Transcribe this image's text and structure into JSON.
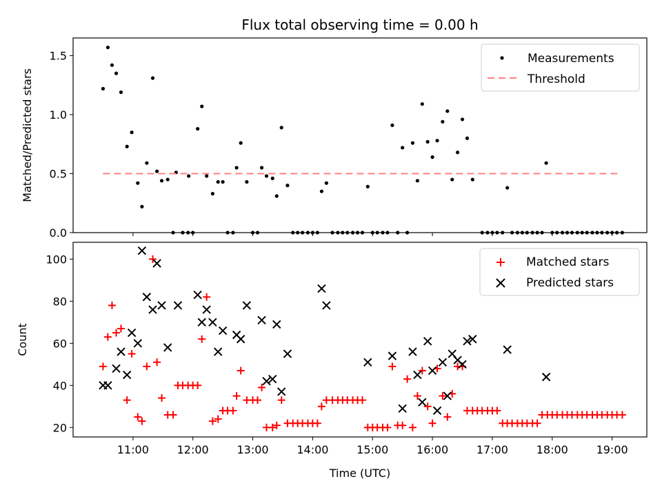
{
  "figure": {
    "title": "Flux total observing time = 0.00 h",
    "xlabel": "Time (UTC)"
  },
  "chart_data": [
    {
      "type": "scatter",
      "panel": "top",
      "ylabel": "Matched/Predicted stars",
      "xlim": [
        10.0,
        19.58
      ],
      "ylim": [
        0,
        1.65
      ],
      "yticks": [
        "0.0",
        "0.5",
        "1.0",
        "1.5"
      ],
      "legend": {
        "position": "top-right"
      },
      "series": [
        {
          "name": "Measurements",
          "kind": "points",
          "color": "#000000",
          "x": [
            10.5,
            10.58,
            10.65,
            10.72,
            10.8,
            10.9,
            10.98,
            11.08,
            11.15,
            11.23,
            11.33,
            11.4,
            11.48,
            11.58,
            11.72,
            11.93,
            12.08,
            12.15,
            12.23,
            12.33,
            12.42,
            12.5,
            12.73,
            12.8,
            12.9,
            13.15,
            13.23,
            13.33,
            13.4,
            13.48,
            13.58,
            14.15,
            14.23,
            14.92,
            15.33,
            15.5,
            15.67,
            15.75,
            15.83,
            15.92,
            16.0,
            16.08,
            16.17,
            16.25,
            16.33,
            16.42,
            16.5,
            16.58,
            16.67,
            17.25,
            17.9
          ],
          "y": [
            1.22,
            1.57,
            1.42,
            1.35,
            1.19,
            0.73,
            0.85,
            0.42,
            0.22,
            0.59,
            1.31,
            0.52,
            0.44,
            0.45,
            0.51,
            0.48,
            0.88,
            1.07,
            0.48,
            0.33,
            0.43,
            0.43,
            0.55,
            0.76,
            0.43,
            0.55,
            0.48,
            0.46,
            0.31,
            0.89,
            0.4,
            0.35,
            0.42,
            0.39,
            0.91,
            0.72,
            0.76,
            0.44,
            1.09,
            0.77,
            0.64,
            0.78,
            0.94,
            1.03,
            0.45,
            0.68,
            0.96,
            0.8,
            0.45,
            0.38,
            0.59
          ]
        },
        {
          "name": "Measurements",
          "kind": "points",
          "color": "#000000",
          "x": [
            11.67,
            11.83,
            11.92,
            12.0,
            12.58,
            12.67,
            13.0,
            13.08,
            13.67,
            13.75,
            13.83,
            13.92,
            14.0,
            14.08,
            14.33,
            14.42,
            14.5,
            14.58,
            14.67,
            14.75,
            14.83,
            15.0,
            15.08,
            15.17,
            15.25,
            15.42,
            15.58,
            16.83,
            16.92,
            17.0,
            17.08,
            17.17,
            17.33,
            17.42,
            17.5,
            17.58,
            17.67,
            17.75,
            17.83,
            18.0,
            18.08,
            18.17,
            18.25,
            18.33,
            18.42,
            18.5,
            18.58,
            18.67,
            18.75,
            18.83,
            18.92,
            19.0,
            19.08,
            19.17
          ],
          "y": [
            0,
            0,
            0,
            0,
            0,
            0,
            0,
            0,
            0,
            0,
            0,
            0,
            0,
            0,
            0,
            0,
            0,
            0,
            0,
            0,
            0,
            0,
            0,
            0,
            0,
            0,
            0,
            0,
            0,
            0,
            0,
            0,
            0,
            0,
            0,
            0,
            0,
            0,
            0,
            0,
            0,
            0,
            0,
            0,
            0,
            0,
            0,
            0,
            0,
            0,
            0,
            0,
            0,
            0
          ]
        },
        {
          "name": "Threshold",
          "kind": "dashed-line",
          "color": "#ff7f7f",
          "x": [
            10.5,
            19.1
          ],
          "y": [
            0.5,
            0.5
          ]
        }
      ]
    },
    {
      "type": "scatter",
      "panel": "bottom",
      "ylabel": "Count",
      "xlim": [
        10.0,
        19.58
      ],
      "ylim": [
        15.5,
        108
      ],
      "yticks": [
        "20",
        "40",
        "60",
        "80",
        "100"
      ],
      "xticks": [
        "11:00",
        "12:00",
        "13:00",
        "14:00",
        "15:00",
        "16:00",
        "17:00",
        "18:00",
        "19:00"
      ],
      "legend": {
        "position": "top-right"
      },
      "series": [
        {
          "name": "Matched stars",
          "marker": "plus",
          "color": "#ff0000",
          "x": [
            10.5,
            10.58,
            10.65,
            10.72,
            10.8,
            10.9,
            10.98,
            11.08,
            11.15,
            11.23,
            11.33,
            11.4,
            11.48,
            11.58,
            11.67,
            11.75,
            11.83,
            11.92,
            12.0,
            12.08,
            12.15,
            12.23,
            12.33,
            12.42,
            12.5,
            12.58,
            12.67,
            12.73,
            12.8,
            12.9,
            13.0,
            13.08,
            13.15,
            13.23,
            13.33,
            13.4,
            13.48,
            13.58,
            13.67,
            13.75,
            13.83,
            13.92,
            14.0,
            14.08,
            14.15,
            14.23,
            14.33,
            14.42,
            14.5,
            14.58,
            14.67,
            14.75,
            14.83,
            14.92,
            15.0,
            15.08,
            15.17,
            15.25,
            15.33,
            15.42,
            15.5,
            15.58,
            15.67,
            15.75,
            15.83,
            15.92,
            16.0,
            16.08,
            16.17,
            16.25,
            16.33,
            16.42,
            16.5,
            16.58,
            16.67,
            16.75,
            16.83,
            16.92,
            17.0,
            17.08,
            17.17,
            17.25,
            17.33,
            17.42,
            17.5,
            17.58,
            17.67,
            17.75,
            17.83,
            17.92,
            18.0,
            18.08,
            18.17,
            18.25,
            18.33,
            18.42,
            18.5,
            18.58,
            18.67,
            18.75,
            18.83,
            18.92,
            19.0,
            19.08,
            19.17
          ],
          "y": [
            49,
            63,
            78,
            65,
            67,
            33,
            55,
            25,
            23,
            49,
            100,
            51,
            34,
            26,
            26,
            40,
            40,
            40,
            40,
            40,
            62,
            82,
            23,
            24,
            28,
            28,
            28,
            35,
            47,
            33,
            33,
            33,
            39,
            20,
            20,
            21,
            33,
            22,
            22,
            22,
            22,
            22,
            22,
            22,
            30,
            33,
            33,
            33,
            33,
            33,
            33,
            33,
            33,
            20,
            20,
            20,
            20,
            20,
            49,
            21,
            21,
            43,
            20,
            35,
            47,
            30,
            22,
            48,
            35,
            25,
            36,
            49,
            49,
            28,
            28,
            28,
            28,
            28,
            28,
            28,
            22,
            22,
            22,
            22,
            22,
            22,
            22,
            22,
            26,
            26,
            26,
            26,
            26,
            26,
            26,
            26,
            26,
            26,
            26,
            26,
            26,
            26,
            26,
            26,
            26
          ]
        },
        {
          "name": "Predicted stars",
          "marker": "x",
          "color": "#000000",
          "x": [
            10.5,
            10.58,
            10.72,
            10.8,
            10.9,
            10.98,
            11.08,
            11.15,
            11.23,
            11.33,
            11.4,
            11.48,
            11.58,
            11.75,
            12.08,
            12.15,
            12.23,
            12.33,
            12.42,
            12.5,
            12.73,
            12.8,
            12.9,
            13.15,
            13.23,
            13.33,
            13.4,
            13.48,
            13.58,
            14.15,
            14.23,
            14.92,
            15.33,
            15.5,
            15.67,
            15.75,
            15.83,
            15.92,
            16.0,
            16.08,
            16.17,
            16.25,
            16.33,
            16.42,
            16.5,
            16.58,
            16.67,
            17.25,
            17.9
          ],
          "y": [
            40,
            40,
            48,
            56,
            45,
            65,
            60,
            104,
            82,
            76,
            98,
            78,
            58,
            78,
            83,
            70,
            76,
            70,
            56,
            66,
            64,
            62,
            78,
            71,
            42,
            43,
            69,
            37,
            55,
            86,
            78,
            51,
            54,
            29,
            56,
            45,
            32,
            61,
            47,
            28,
            51,
            35,
            55,
            52,
            50,
            61,
            62,
            57,
            44
          ]
        }
      ]
    }
  ]
}
